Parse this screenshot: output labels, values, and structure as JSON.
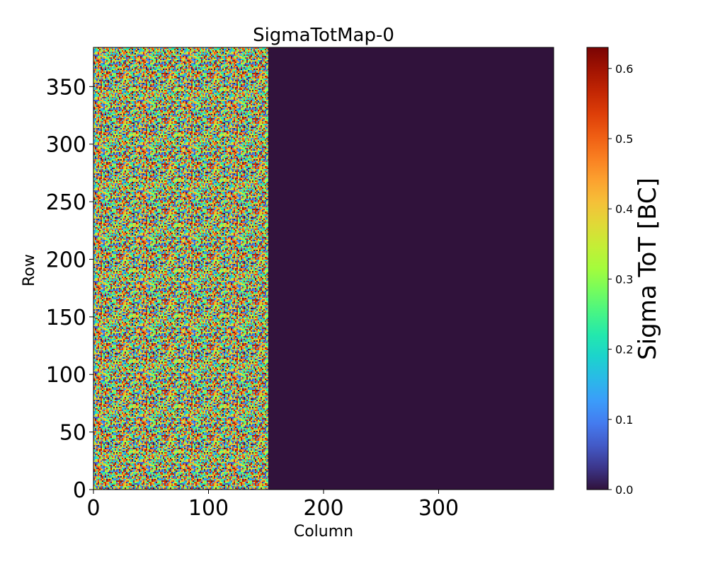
{
  "chart_data": {
    "type": "heatmap",
    "title": "SigmaTotMap-0",
    "xlabel": "Column",
    "ylabel": "Row",
    "xlim": [
      0,
      400
    ],
    "ylim": [
      0,
      384
    ],
    "x_ticks": [
      {
        "value": 0,
        "label": "0"
      },
      {
        "value": 100,
        "label": "100"
      },
      {
        "value": 200,
        "label": "200"
      },
      {
        "value": 300,
        "label": "300"
      }
    ],
    "y_ticks": [
      {
        "value": 0,
        "label": "0"
      },
      {
        "value": 50,
        "label": "50"
      },
      {
        "value": 100,
        "label": "100"
      },
      {
        "value": 150,
        "label": "150"
      },
      {
        "value": 200,
        "label": "200"
      },
      {
        "value": 250,
        "label": "250"
      },
      {
        "value": 300,
        "label": "300"
      },
      {
        "value": 350,
        "label": "350"
      }
    ],
    "regions": [
      {
        "name": "noisy-region",
        "col_range": [
          0,
          152
        ],
        "row_range": [
          0,
          384
        ],
        "value_range": [
          0.0,
          0.6
        ],
        "pattern": "random"
      },
      {
        "name": "zero-region",
        "col_range": [
          152,
          400
        ],
        "row_range": [
          0,
          384
        ],
        "value": 0.0
      }
    ],
    "colorbar": {
      "label": "Sigma ToT [BC]",
      "colormap": "turbo",
      "range": [
        0.0,
        0.63
      ],
      "ticks": [
        {
          "value": 0.0,
          "label": "0.0"
        },
        {
          "value": 0.1,
          "label": "0.1"
        },
        {
          "value": 0.2,
          "label": "0.2"
        },
        {
          "value": 0.3,
          "label": "0.3"
        },
        {
          "value": 0.4,
          "label": "0.4"
        },
        {
          "value": 0.5,
          "label": "0.5"
        },
        {
          "value": 0.6,
          "label": "0.6"
        }
      ]
    }
  }
}
